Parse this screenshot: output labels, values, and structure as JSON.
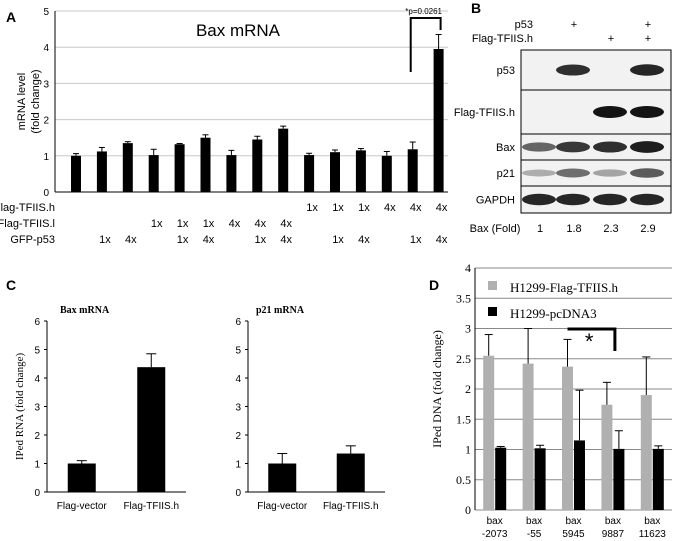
{
  "figure": {
    "panel_labels": [
      "A",
      "B",
      "C",
      "D"
    ]
  },
  "colors": {
    "dark": "#000000",
    "gray": "#b0b0b0",
    "blot_bg": "#f2f2f2",
    "border": "#000000"
  },
  "chart_data": [
    {
      "id": "A",
      "type": "bar",
      "title": "Bax mRNA",
      "ylabel": "mRNA level\n(fold change)",
      "ylim": [
        0,
        5
      ],
      "yticks": [
        0,
        1,
        2,
        3,
        4,
        5
      ],
      "values": [
        1.0,
        1.12,
        1.35,
        1.02,
        1.32,
        1.5,
        1.02,
        1.45,
        1.75,
        1.02,
        1.1,
        1.15,
        1.0,
        1.18,
        3.95
      ],
      "errors": [
        0.06,
        0.11,
        0.04,
        0.16,
        0.02,
        0.08,
        0.13,
        0.09,
        0.07,
        0.05,
        0.06,
        0.05,
        0.12,
        0.2,
        0.4
      ],
      "significance": {
        "label": "*p=0.0261",
        "from_index": 13,
        "to_index": 14
      },
      "condition_rows": [
        {
          "label": "Flag-TFIIS.h",
          "cells": [
            "",
            "",
            "",
            "",
            "",
            "",
            "",
            "",
            "",
            "1x",
            "1x",
            "1x",
            "4x",
            "4x",
            "4x"
          ]
        },
        {
          "label": "Flag-TFIIS.l",
          "cells": [
            "",
            "",
            "",
            "1x",
            "1x",
            "1x",
            "4x",
            "4x",
            "4x",
            "",
            "",
            "",
            "",
            "",
            ""
          ]
        },
        {
          "label": "GFP-p53",
          "cells": [
            "",
            "1x",
            "4x",
            "",
            "1x",
            "4x",
            "",
            "1x",
            "4x",
            "",
            "1x",
            "4x",
            "",
            "1x",
            "4x"
          ]
        }
      ]
    },
    {
      "id": "B",
      "type": "table",
      "header_rows": [
        {
          "label": "p53",
          "cells": [
            "",
            "+",
            "",
            "+"
          ]
        },
        {
          "label": "Flag-TFIIS.h",
          "cells": [
            "",
            "",
            "+",
            "+"
          ]
        }
      ],
      "blots": [
        {
          "label": "p53",
          "intensity": [
            0.0,
            0.85,
            0.0,
            0.9
          ]
        },
        {
          "label": "Flag-TFIIS.h",
          "intensity": [
            0.0,
            0.0,
            1.0,
            1.0
          ]
        },
        {
          "label": "Bax",
          "intensity": [
            0.55,
            0.8,
            0.85,
            0.95
          ]
        },
        {
          "label": "p21",
          "intensity": [
            0.15,
            0.5,
            0.2,
            0.6
          ]
        },
        {
          "label": "GAPDH",
          "intensity": [
            0.9,
            0.9,
            0.9,
            0.9
          ]
        }
      ],
      "fold_label": "Bax (Fold)",
      "fold_values": [
        "1",
        "1.8",
        "2.3",
        "2.9"
      ]
    },
    {
      "id": "C1",
      "type": "bar",
      "title": "Bax mRNA",
      "ylabel": "IPed RNA (fold change)",
      "ylim": [
        0,
        6
      ],
      "yticks": [
        0,
        1,
        2,
        3,
        4,
        5,
        6
      ],
      "categories": [
        "Flag-vector",
        "Flag-TFIIS.h"
      ],
      "values": [
        1.0,
        4.38
      ],
      "errors": [
        0.1,
        0.47
      ]
    },
    {
      "id": "C2",
      "type": "bar",
      "title": "p21 mRNA",
      "ylabel": "",
      "ylim": [
        0,
        6
      ],
      "yticks": [
        0,
        1,
        2,
        3,
        4,
        5,
        6
      ],
      "categories": [
        "Flag-vector",
        "Flag-TFIIS.h"
      ],
      "values": [
        1.0,
        1.35
      ],
      "errors": [
        0.35,
        0.27
      ]
    },
    {
      "id": "D",
      "type": "bar",
      "ylabel": "IPed DNA  (fold change)",
      "ylim": [
        0,
        4
      ],
      "yticks": [
        "0",
        "0.5",
        "1",
        "1.5",
        "2",
        "2.5",
        "3",
        "3.5",
        "4"
      ],
      "ytick_values": [
        0,
        0.5,
        1,
        1.5,
        2,
        2.5,
        3,
        3.5,
        4
      ],
      "categories": [
        [
          "bax",
          "-2073"
        ],
        [
          "bax",
          "-55"
        ],
        [
          "bax",
          "5945"
        ],
        [
          "bax",
          "9887"
        ],
        [
          "bax",
          "11623"
        ]
      ],
      "series": [
        {
          "name": "H1299-Flag-TFIIS.h",
          "values": [
            2.55,
            2.42,
            2.37,
            1.74,
            1.9
          ],
          "errors": [
            0.35,
            0.58,
            0.45,
            0.37,
            0.63
          ]
        },
        {
          "name": "H1299-pcDNA3",
          "values": [
            1.03,
            1.02,
            1.15,
            1.01,
            1.01
          ],
          "errors": [
            0.02,
            0.05,
            0.83,
            0.3,
            0.05
          ]
        }
      ],
      "significance": {
        "label": "*",
        "from_index": 2,
        "to_index": 3
      }
    }
  ]
}
